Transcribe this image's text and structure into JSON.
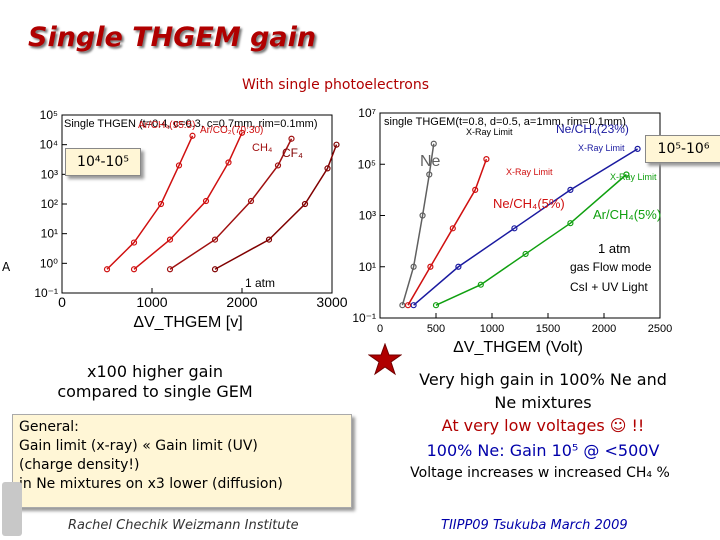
{
  "slide": {
    "title": "Single THGEM gain",
    "subtitle": "With single photoelectrons",
    "badge_left": "10⁴-10⁵",
    "badge_right": "10⁵-10⁶",
    "left_note_line1": "x100 higher gain",
    "left_note_line2": "compared to single GEM",
    "general_box": [
      "General:",
      "Gain limit (x-ray)  «  Gain limit (UV)",
      "(charge density!)",
      "in Ne mixtures on x3 lower (diffusion)"
    ],
    "right_line1": "Very high gain in 100% Ne  and",
    "right_line2": "Ne mixtures",
    "right_line3": "At very low voltages ☺ !!",
    "right_line4": "100% Ne: Gain 10⁵ @ <500V",
    "right_line5": "Voltage increases w increased CH₄ %",
    "footer_left": "Rachel Chechik  Weizmann Institute",
    "footer_right": "TIIPP09 Tsukuba March 2009",
    "sidebar_char": "A",
    "colors": {
      "title": "#b00000",
      "badge": "#fff6d6",
      "accent_blue": "#0000aa"
    }
  },
  "chart_data": [
    {
      "type": "line",
      "title": "Single THGEN (t=0.4, c=0.3, c=0.7mm, rim=0.1mm)",
      "xlabel": "ΔV_THGEM [v]",
      "ylabel": "",
      "xlim": [
        0,
        3000
      ],
      "ylim": [
        -1,
        5
      ],
      "yscale": "log10 exponent",
      "x_ticks": [
        "0",
        "1000",
        "2000",
        "3000"
      ],
      "y_ticks": [
        "10⁻¹",
        "10⁰",
        "10¹",
        "10²",
        "10³",
        "10⁴",
        "10⁵"
      ],
      "annotations": [
        "1 atm"
      ],
      "series": [
        {
          "name": "Ar/CH₄(95:5)",
          "color": "#d01010",
          "x": [
            500,
            800,
            1100,
            1300,
            1450
          ],
          "y": [
            -0.2,
            0.7,
            2.0,
            3.3,
            4.3
          ]
        },
        {
          "name": "Ar/CO₂(70:30)",
          "color": "#d01010",
          "x": [
            800,
            1200,
            1600,
            1850,
            2000
          ],
          "y": [
            -0.2,
            0.8,
            2.1,
            3.4,
            4.4
          ]
        },
        {
          "name": "CH₄",
          "color": "#a01010",
          "x": [
            1200,
            1700,
            2100,
            2400,
            2550
          ],
          "y": [
            -0.2,
            0.8,
            2.1,
            3.3,
            4.2
          ]
        },
        {
          "name": "CF₄",
          "color": "#800000",
          "x": [
            1700,
            2300,
            2700,
            2950,
            3050
          ],
          "y": [
            -0.2,
            0.8,
            2.0,
            3.2,
            4.0
          ]
        }
      ]
    },
    {
      "type": "line",
      "title": "single THGEM(t=0.8, d=0.5, a=1mm, rim=0.1mm)",
      "xlabel": "ΔV_THGEM (Volt)",
      "ylabel": "",
      "xlim": [
        0,
        2500
      ],
      "ylim": [
        -1,
        7
      ],
      "yscale": "log10 exponent",
      "x_ticks": [
        "0",
        "500",
        "1000",
        "1500",
        "2000",
        "2500"
      ],
      "y_ticks": [
        "10⁻¹",
        "10¹",
        "10³",
        "10⁵",
        "10⁷"
      ],
      "annotations": [
        "X-Ray Limit",
        "X-Ray Limit",
        "X-Ray Limit",
        "X-Ray Limit",
        "1 atm",
        "gas Flow mode",
        "CsI + UV Light"
      ],
      "series": [
        {
          "name": "Ne",
          "color": "#606060",
          "x": [
            200,
            300,
            380,
            440,
            480
          ],
          "y": [
            -0.5,
            1.0,
            3.0,
            4.6,
            5.8
          ]
        },
        {
          "name": "Ne/CH₄(23%)",
          "color": "#1a1aa0",
          "x": [
            300,
            700,
            1200,
            1700,
            2300
          ],
          "y": [
            -0.5,
            1.0,
            2.5,
            4.0,
            5.6
          ]
        },
        {
          "name": "Ne/CH₄(5%)",
          "color": "#d01010",
          "x": [
            250,
            450,
            650,
            850,
            950
          ],
          "y": [
            -0.5,
            1.0,
            2.5,
            4.0,
            5.2
          ]
        },
        {
          "name": "Ar/CH₄(5%)",
          "color": "#10a010",
          "x": [
            500,
            900,
            1300,
            1700,
            2200
          ],
          "y": [
            -0.5,
            0.3,
            1.5,
            2.7,
            4.6
          ]
        }
      ]
    }
  ]
}
